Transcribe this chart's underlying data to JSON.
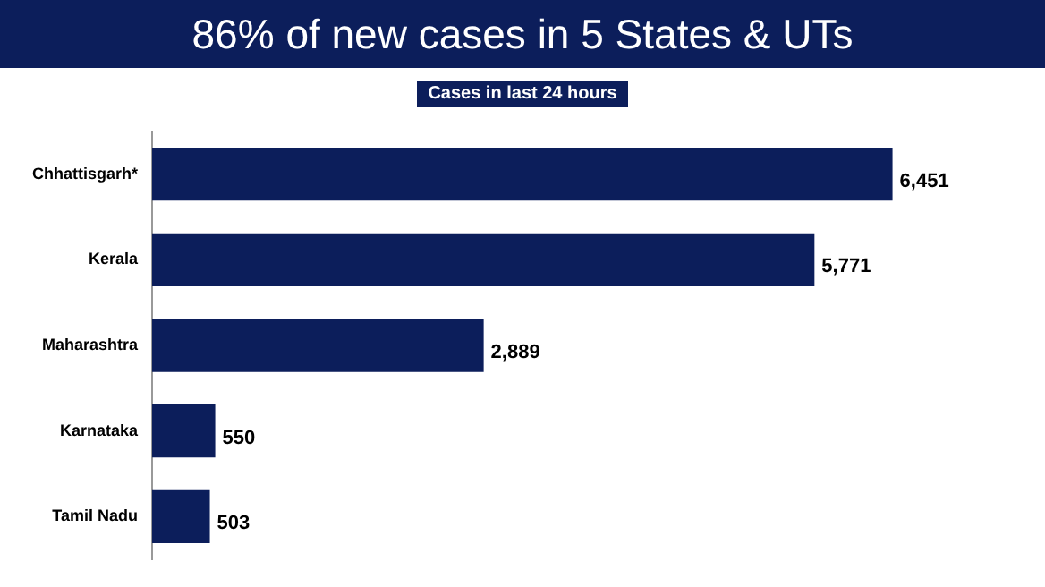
{
  "chart_data": {
    "type": "bar",
    "orientation": "horizontal",
    "title": "86% of new cases in 5 States & UTs",
    "subtitle": "Cases in last 24 hours",
    "categories": [
      "Chhattisgarh*",
      "Kerala",
      "Maharashtra",
      "Karnataka",
      "Tamil Nadu"
    ],
    "values": [
      6451,
      5771,
      2889,
      550,
      503
    ],
    "value_labels": [
      "6,451",
      "5,771",
      "2,889",
      "550",
      "503"
    ],
    "color": "#0c1e5b"
  }
}
